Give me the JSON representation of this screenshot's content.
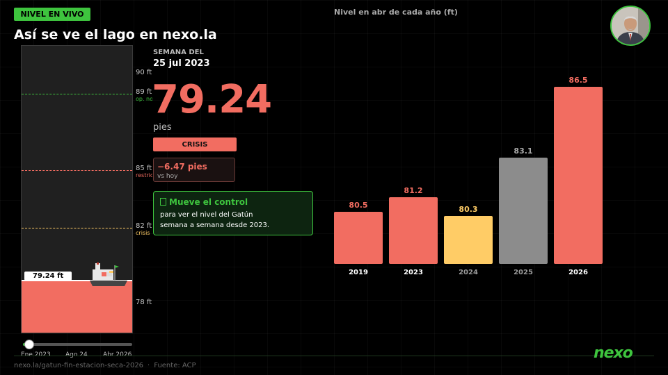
{
  "header": {
    "live_badge": "NIVEL EN VIVO",
    "title": "Así se ve el lago en nexo.la",
    "chart_title": "Nivel en abr de cada año (ft)"
  },
  "readout": {
    "week_label": "SEMANA DEL",
    "week_date": "25 jul 2023",
    "value": "79.24",
    "unit": "pies",
    "status": "CRISIS",
    "delta": "−6.47 pies",
    "delta_sub": "vs hoy"
  },
  "hint": {
    "icon": "hand-pointer-icon",
    "title": "Mueve el control",
    "text_line1": "para ver el nivel del Gatún",
    "text_line2": "semana a semana desde 2023."
  },
  "gauge": {
    "min": 76.5,
    "max": 91.5,
    "current": 79.24,
    "current_label": "79.24 ft",
    "ticks": [
      {
        "value": 90,
        "label": "90 ft",
        "sub": ""
      },
      {
        "value": 89,
        "label": "89 ft",
        "sub": "op. normal",
        "color": "#3ec43e"
      },
      {
        "value": 85,
        "label": "85 ft",
        "sub": "restricción",
        "color": "#f26d61"
      },
      {
        "value": 82,
        "label": "82 ft",
        "sub": "crisis",
        "color": "#ffcc66"
      },
      {
        "value": 78,
        "label": "78 ft",
        "sub": ""
      }
    ]
  },
  "slider": {
    "position": 0.05,
    "labels": [
      "Ene 2023",
      "Ago 24",
      "Abr 2026"
    ]
  },
  "chart_data": {
    "type": "bar",
    "title": "Nivel en abr de cada año (ft)",
    "categories": [
      "2019",
      "2023",
      "2024",
      "2025",
      "2026"
    ],
    "values": [
      80.5,
      81.2,
      80.3,
      83.1,
      86.5
    ],
    "value_labels": [
      "80.5",
      "81.2",
      "80.3",
      "83.1",
      "86.5"
    ],
    "colors": [
      "#f26d61",
      "#f26d61",
      "#ffcc66",
      "#8c8c8c",
      "#f26d61"
    ],
    "label_colors": [
      "#f26d61",
      "#f26d61",
      "#ffcc66",
      "#aaaaaa",
      "#f26d61"
    ],
    "tick_colors": [
      "#ffffff",
      "#ffffff",
      "#9a9a9a",
      "#9a9a9a",
      "#ffffff"
    ],
    "ylim": [
      78,
      87.5
    ],
    "grid": false,
    "legend": "none"
  },
  "footer": {
    "url": "nexo.la/gatun-fin-estacion-seca-2026",
    "separator": "·",
    "source": "Fuente: ACP",
    "brand": "nexo"
  },
  "colors": {
    "accent": "#3ec43e",
    "crisis": "#f26d61",
    "warning": "#ffcc66",
    "neutral": "#8c8c8c"
  }
}
